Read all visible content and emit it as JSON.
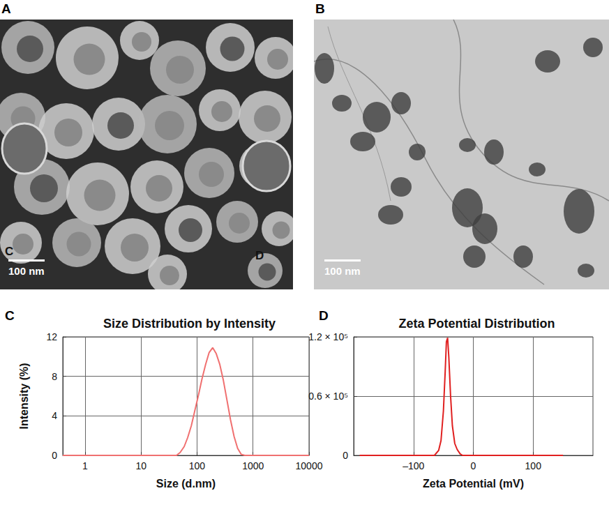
{
  "panels": [
    {
      "label": "A",
      "scale_bar": "100 nm",
      "overlay_texts": [
        "C",
        "D"
      ]
    },
    {
      "label": "B",
      "scale_bar": "100 nm"
    }
  ],
  "chart_data": [
    {
      "type": "line",
      "annotations": [
        "C"
      ],
      "title": "Size Distribution by Intensity",
      "xlabel": "Size (d.nm)",
      "ylabel": "Intensity (%)",
      "log": "x",
      "grid": true,
      "color": "#f07070",
      "x": [
        0.4,
        10,
        43,
        50,
        59,
        68,
        79,
        91,
        106,
        122,
        142,
        164,
        190,
        220,
        255,
        295,
        342,
        396,
        459,
        531,
        615,
        712,
        1000,
        10000
      ],
      "values": [
        0,
        0,
        0,
        0.3,
        0.9,
        1.8,
        3.0,
        4.5,
        6.1,
        7.7,
        9.2,
        10.4,
        10.9,
        10.3,
        9.2,
        7.6,
        5.6,
        3.6,
        1.9,
        0.7,
        0.1,
        0,
        0,
        0
      ],
      "xlim": [
        0.4,
        10000
      ],
      "xticks": [
        1,
        10,
        100,
        1000,
        10000
      ],
      "ylim": [
        0,
        12
      ],
      "yticks": [
        0,
        4,
        8,
        12
      ]
    },
    {
      "type": "line",
      "annotations": [
        "D"
      ],
      "title": "Zeta Potential Distribution",
      "xlabel": "Zeta Potential (mV)",
      "grid": true,
      "color": "#e02020",
      "x": [
        -190,
        -65,
        -58,
        -54,
        -50,
        -47,
        -45,
        -43,
        -41,
        -38,
        -35,
        -31,
        -27,
        -22,
        -18,
        150
      ],
      "values": [
        0,
        0,
        5000,
        15000,
        45000,
        85000,
        115000,
        119000,
        100000,
        60000,
        30000,
        12000,
        6000,
        1500,
        0,
        0
      ],
      "xlim": [
        -200,
        200
      ],
      "xticks": [
        {
          "value": -100,
          "label": "–100"
        },
        0,
        100
      ],
      "ylim": [
        0,
        120000
      ],
      "yticks": [
        0,
        {
          "value": 60000,
          "label": "0.6 × 10⁵"
        },
        {
          "value": 120000,
          "label": "1.2 × 10⁵"
        }
      ]
    }
  ]
}
